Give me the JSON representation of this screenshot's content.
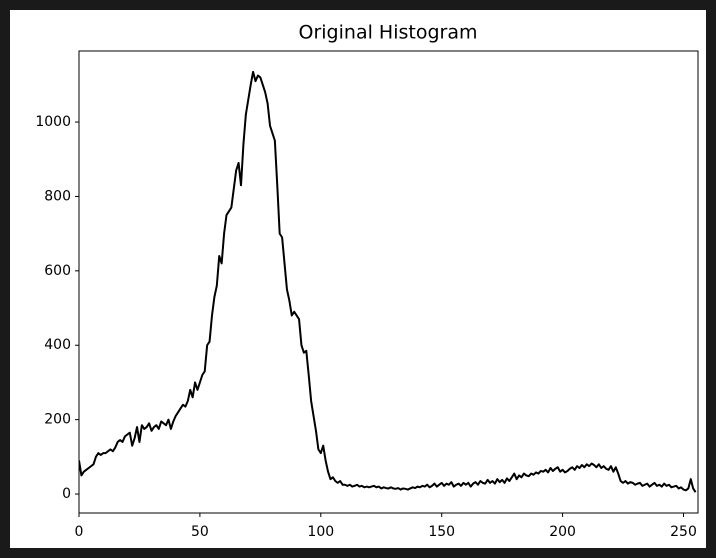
{
  "chart_data": {
    "type": "line",
    "title": "Original Histogram",
    "color": "#000000",
    "x": [
      0,
      1,
      2,
      3,
      4,
      5,
      6,
      7,
      8,
      9,
      10,
      11,
      12,
      13,
      14,
      15,
      16,
      17,
      18,
      19,
      20,
      21,
      22,
      23,
      24,
      25,
      26,
      27,
      28,
      29,
      30,
      31,
      32,
      33,
      34,
      35,
      36,
      37,
      38,
      39,
      40,
      41,
      42,
      43,
      44,
      45,
      46,
      47,
      48,
      49,
      50,
      51,
      52,
      53,
      54,
      55,
      56,
      57,
      58,
      59,
      60,
      61,
      62,
      63,
      64,
      65,
      66,
      67,
      68,
      69,
      70,
      71,
      72,
      73,
      74,
      75,
      76,
      77,
      78,
      79,
      80,
      81,
      82,
      83,
      84,
      85,
      86,
      87,
      88,
      89,
      90,
      91,
      92,
      93,
      94,
      95,
      96,
      97,
      98,
      99,
      100,
      101,
      102,
      103,
      104,
      105,
      106,
      107,
      108,
      109,
      110,
      111,
      112,
      113,
      114,
      115,
      116,
      117,
      118,
      119,
      120,
      121,
      122,
      123,
      124,
      125,
      126,
      127,
      128,
      129,
      130,
      131,
      132,
      133,
      134,
      135,
      136,
      137,
      138,
      139,
      140,
      141,
      142,
      143,
      144,
      145,
      146,
      147,
      148,
      149,
      150,
      151,
      152,
      153,
      154,
      155,
      156,
      157,
      158,
      159,
      160,
      161,
      162,
      163,
      164,
      165,
      166,
      167,
      168,
      169,
      170,
      171,
      172,
      173,
      174,
      175,
      176,
      177,
      178,
      179,
      180,
      181,
      182,
      183,
      184,
      185,
      186,
      187,
      188,
      189,
      190,
      191,
      192,
      193,
      194,
      195,
      196,
      197,
      198,
      199,
      200,
      201,
      202,
      203,
      204,
      205,
      206,
      207,
      208,
      209,
      210,
      211,
      212,
      213,
      214,
      215,
      216,
      217,
      218,
      219,
      220,
      221,
      222,
      223,
      224,
      225,
      226,
      227,
      228,
      229,
      230,
      231,
      232,
      233,
      234,
      235,
      236,
      237,
      238,
      239,
      240,
      241,
      242,
      243,
      244,
      245,
      246,
      247,
      248,
      249,
      250,
      251,
      252,
      253,
      254,
      255
    ],
    "values": [
      90,
      50,
      60,
      65,
      70,
      75,
      80,
      100,
      110,
      105,
      110,
      110,
      115,
      120,
      115,
      125,
      140,
      145,
      140,
      155,
      160,
      165,
      130,
      150,
      180,
      140,
      185,
      175,
      180,
      190,
      170,
      180,
      185,
      175,
      195,
      190,
      185,
      200,
      175,
      195,
      210,
      220,
      230,
      240,
      235,
      250,
      280,
      260,
      300,
      280,
      300,
      320,
      330,
      400,
      410,
      480,
      530,
      560,
      640,
      620,
      700,
      750,
      760,
      770,
      820,
      870,
      890,
      830,
      940,
      1020,
      1060,
      1100,
      1135,
      1110,
      1125,
      1120,
      1100,
      1080,
      1050,
      990,
      970,
      950,
      830,
      700,
      690,
      620,
      550,
      520,
      480,
      490,
      480,
      470,
      400,
      380,
      385,
      320,
      250,
      210,
      170,
      120,
      110,
      130,
      90,
      60,
      40,
      45,
      35,
      30,
      35,
      25,
      25,
      22,
      25,
      20,
      22,
      25,
      20,
      22,
      18,
      20,
      18,
      20,
      22,
      18,
      20,
      15,
      18,
      16,
      15,
      18,
      15,
      14,
      16,
      12,
      15,
      14,
      12,
      15,
      18,
      16,
      20,
      18,
      22,
      20,
      25,
      18,
      22,
      28,
      20,
      25,
      30,
      22,
      28,
      25,
      32,
      20,
      25,
      28,
      22,
      30,
      25,
      30,
      20,
      28,
      32,
      25,
      35,
      30,
      28,
      38,
      30,
      35,
      28,
      40,
      32,
      38,
      30,
      42,
      35,
      45,
      55,
      40,
      50,
      45,
      55,
      50,
      48,
      55,
      52,
      58,
      55,
      62,
      60,
      65,
      58,
      70,
      62,
      68,
      72,
      60,
      65,
      58,
      62,
      68,
      72,
      65,
      75,
      70,
      78,
      72,
      80,
      75,
      82,
      78,
      72,
      80,
      70,
      75,
      68,
      65,
      75,
      60,
      72,
      55,
      35,
      30,
      35,
      28,
      32,
      30,
      25,
      28,
      30,
      22,
      25,
      28,
      20,
      25,
      30,
      22,
      25,
      20,
      28,
      22,
      25,
      18,
      20,
      22,
      15,
      18,
      12,
      10,
      15,
      40,
      15,
      5
    ],
    "xlim": [
      0,
      256
    ],
    "ylim": [
      -51,
      1191
    ],
    "xticks": [
      0,
      50,
      100,
      150,
      200,
      250
    ],
    "yticks": [
      0,
      200,
      400,
      600,
      800,
      1000
    ]
  }
}
